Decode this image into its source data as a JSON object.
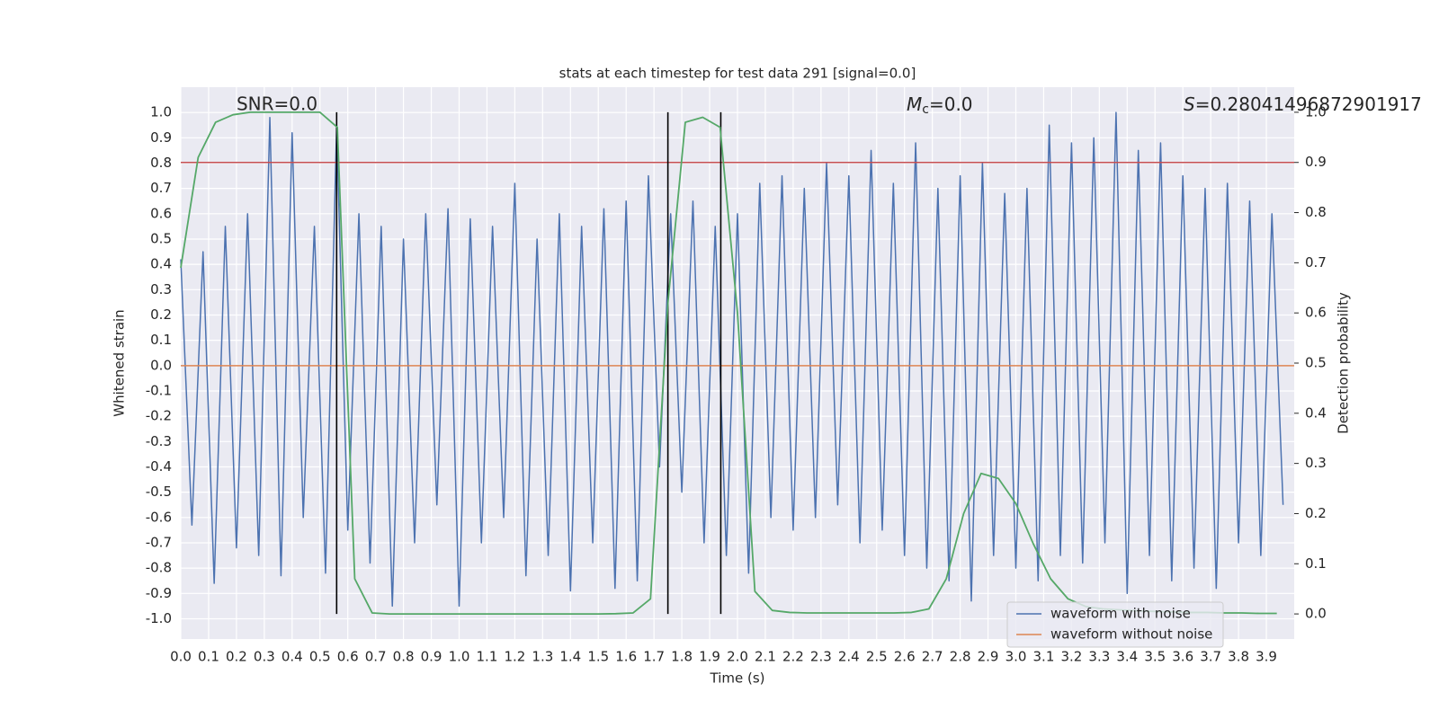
{
  "chart_data": {
    "type": "line",
    "title": "stats at each timestep for test data 291 [signal=0.0]",
    "x_label": "Time (s)",
    "y_label": "Whitened strain",
    "y2_label": "Detection probability",
    "annotations": {
      "snr": "SNR=0.0",
      "mc": {
        "symbol": "M",
        "subscript": "c",
        "text": "=0.0"
      },
      "s": {
        "symbol": "S",
        "text": "=0.28041496872901917"
      }
    },
    "xlim": [
      0,
      4.0
    ],
    "ylim": [
      -1.08,
      1.1
    ],
    "y2lim": [
      -0.05,
      1.05
    ],
    "grid": true,
    "legend_position": "lower right",
    "xticks": [
      {
        "value": 0,
        "label": "0.0"
      },
      0.1,
      0.2,
      0.3,
      0.4,
      0.5,
      0.6,
      0.7,
      0.8,
      0.9,
      {
        "value": 1,
        "label": "1.0"
      },
      1.1,
      1.2,
      1.3,
      1.4,
      1.5,
      1.6,
      1.7,
      1.8,
      1.9,
      {
        "value": 2,
        "label": "2.0"
      },
      2.1,
      2.2,
      2.3,
      2.4,
      2.5,
      2.6,
      2.7,
      2.8,
      2.9,
      {
        "value": 3,
        "label": "3.0"
      },
      3.1,
      3.2,
      3.3,
      3.4,
      3.5,
      3.6,
      3.7,
      3.8,
      3.9
    ],
    "yticks": [
      {
        "value": -1,
        "label": "-1.0"
      },
      -0.9,
      -0.8,
      -0.7,
      -0.6,
      -0.5,
      -0.4,
      -0.3,
      -0.2,
      -0.1,
      {
        "value": 0,
        "label": "0.0"
      },
      0.1,
      0.2,
      0.3,
      0.4,
      0.5,
      0.6,
      0.7,
      0.8,
      0.9,
      {
        "value": 1,
        "label": "1.0"
      }
    ],
    "y2ticks": [
      {
        "value": 0,
        "label": "0.0"
      },
      0.1,
      0.2,
      0.3,
      0.4,
      0.5,
      0.6,
      0.7,
      0.8,
      0.9,
      {
        "value": 1,
        "label": "1.0"
      }
    ],
    "series": [
      {
        "name": "waveform with noise",
        "color": "#4c72b0",
        "x": [
          0,
          0.04,
          0.08,
          0.12,
          0.16,
          0.2,
          0.24,
          0.28,
          0.32,
          0.36,
          0.4,
          0.44,
          0.48,
          0.52,
          0.56,
          0.6,
          0.64,
          0.68,
          0.72,
          0.76,
          0.8,
          0.84,
          0.88,
          0.92,
          0.96,
          1,
          1.04,
          1.08,
          1.12,
          1.16,
          1.2,
          1.24,
          1.28,
          1.32,
          1.36,
          1.4,
          1.44,
          1.48,
          1.52,
          1.56,
          1.6,
          1.64,
          1.68,
          1.72,
          1.76,
          1.8,
          1.84,
          1.88,
          1.92,
          1.96,
          2,
          2.04,
          2.08,
          2.12,
          2.16,
          2.2,
          2.24,
          2.28,
          2.32,
          2.36,
          2.4,
          2.44,
          2.48,
          2.52,
          2.56,
          2.6,
          2.64,
          2.68,
          2.72,
          2.76,
          2.8,
          2.84,
          2.88,
          2.92,
          2.96,
          3,
          3.04,
          3.08,
          3.12,
          3.16,
          3.2,
          3.24,
          3.28,
          3.32,
          3.36,
          3.4,
          3.44,
          3.48,
          3.52,
          3.56,
          3.6,
          3.64,
          3.68,
          3.72,
          3.76,
          3.8,
          3.84,
          3.88,
          3.92,
          3.96
        ],
        "values": [
          0.42,
          -0.63,
          0.45,
          -0.86,
          0.55,
          -0.72,
          0.6,
          -0.75,
          0.98,
          -0.83,
          0.92,
          -0.6,
          0.55,
          -0.82,
          0.95,
          -0.65,
          0.6,
          -0.78,
          0.55,
          -0.95,
          0.5,
          -0.7,
          0.6,
          -0.55,
          0.62,
          -0.95,
          0.58,
          -0.7,
          0.55,
          -0.6,
          0.72,
          -0.83,
          0.5,
          -0.75,
          0.6,
          -0.89,
          0.55,
          -0.7,
          0.62,
          -0.88,
          0.65,
          -0.85,
          0.75,
          -0.4,
          0.6,
          -0.5,
          0.65,
          -0.7,
          0.55,
          -0.75,
          0.6,
          -0.82,
          0.72,
          -0.6,
          0.75,
          -0.65,
          0.7,
          -0.6,
          0.8,
          -0.55,
          0.75,
          -0.7,
          0.85,
          -0.65,
          0.72,
          -0.75,
          0.88,
          -0.8,
          0.7,
          -0.85,
          0.75,
          -0.93,
          0.8,
          -0.75,
          0.68,
          -0.8,
          0.7,
          -0.85,
          0.95,
          -0.75,
          0.88,
          -0.78,
          0.9,
          -0.7,
          1.0,
          -0.9,
          0.85,
          -0.75,
          0.88,
          -0.85,
          0.75,
          -0.8,
          0.7,
          -0.88,
          0.72,
          -0.7,
          0.65,
          -0.75,
          0.6,
          -0.55
        ]
      },
      {
        "name": "waveform without noise",
        "color": "#dd8452",
        "x": [
          0,
          4.0
        ],
        "values": [
          0,
          0
        ]
      }
    ],
    "probability": {
      "color": "#55a868",
      "axis": "y2",
      "x": [
        0,
        0.0625,
        0.125,
        0.1875,
        0.25,
        0.3125,
        0.375,
        0.4375,
        0.5,
        0.5625,
        0.625,
        0.6875,
        0.75,
        0.8125,
        0.875,
        0.9375,
        1,
        1.0625,
        1.125,
        1.1875,
        1.25,
        1.3125,
        1.375,
        1.4375,
        1.5,
        1.5625,
        1.625,
        1.6875,
        1.75,
        1.8125,
        1.875,
        1.9375,
        2,
        2.0625,
        2.125,
        2.1875,
        2.25,
        2.3125,
        2.375,
        2.4375,
        2.5,
        2.5625,
        2.625,
        2.6875,
        2.75,
        2.8125,
        2.875,
        2.9375,
        3,
        3.0625,
        3.125,
        3.1875,
        3.25,
        3.3125,
        3.375,
        3.4375,
        3.5,
        3.5625,
        3.625,
        3.6875,
        3.75,
        3.8125,
        3.875,
        3.9375
      ],
      "values": [
        0.69,
        0.91,
        0.98,
        0.995,
        1.0,
        1.0,
        1.0,
        1.0,
        1.0,
        0.97,
        0.07,
        0.002,
        0.0,
        0.0,
        0.0,
        0.0,
        0,
        0,
        0,
        0,
        0,
        0,
        0,
        0,
        0,
        0.0005,
        0.002,
        0.03,
        0.62,
        0.98,
        0.99,
        0.97,
        0.6,
        0.045,
        0.007,
        0.003,
        0.002,
        0.002,
        0.002,
        0.002,
        0.002,
        0.002,
        0.003,
        0.01,
        0.07,
        0.2,
        0.28,
        0.27,
        0.22,
        0.14,
        0.07,
        0.03,
        0.015,
        0.01,
        0.008,
        0.006,
        0.005,
        0.004,
        0.003,
        0.003,
        0.002,
        0.002,
        0.001,
        0.001
      ]
    },
    "threshold": {
      "value": 0.9,
      "color": "#c44e52",
      "axis": "y2"
    },
    "vlines": {
      "x": [
        0.56,
        1.75,
        1.94
      ],
      "color": "#000000"
    }
  }
}
